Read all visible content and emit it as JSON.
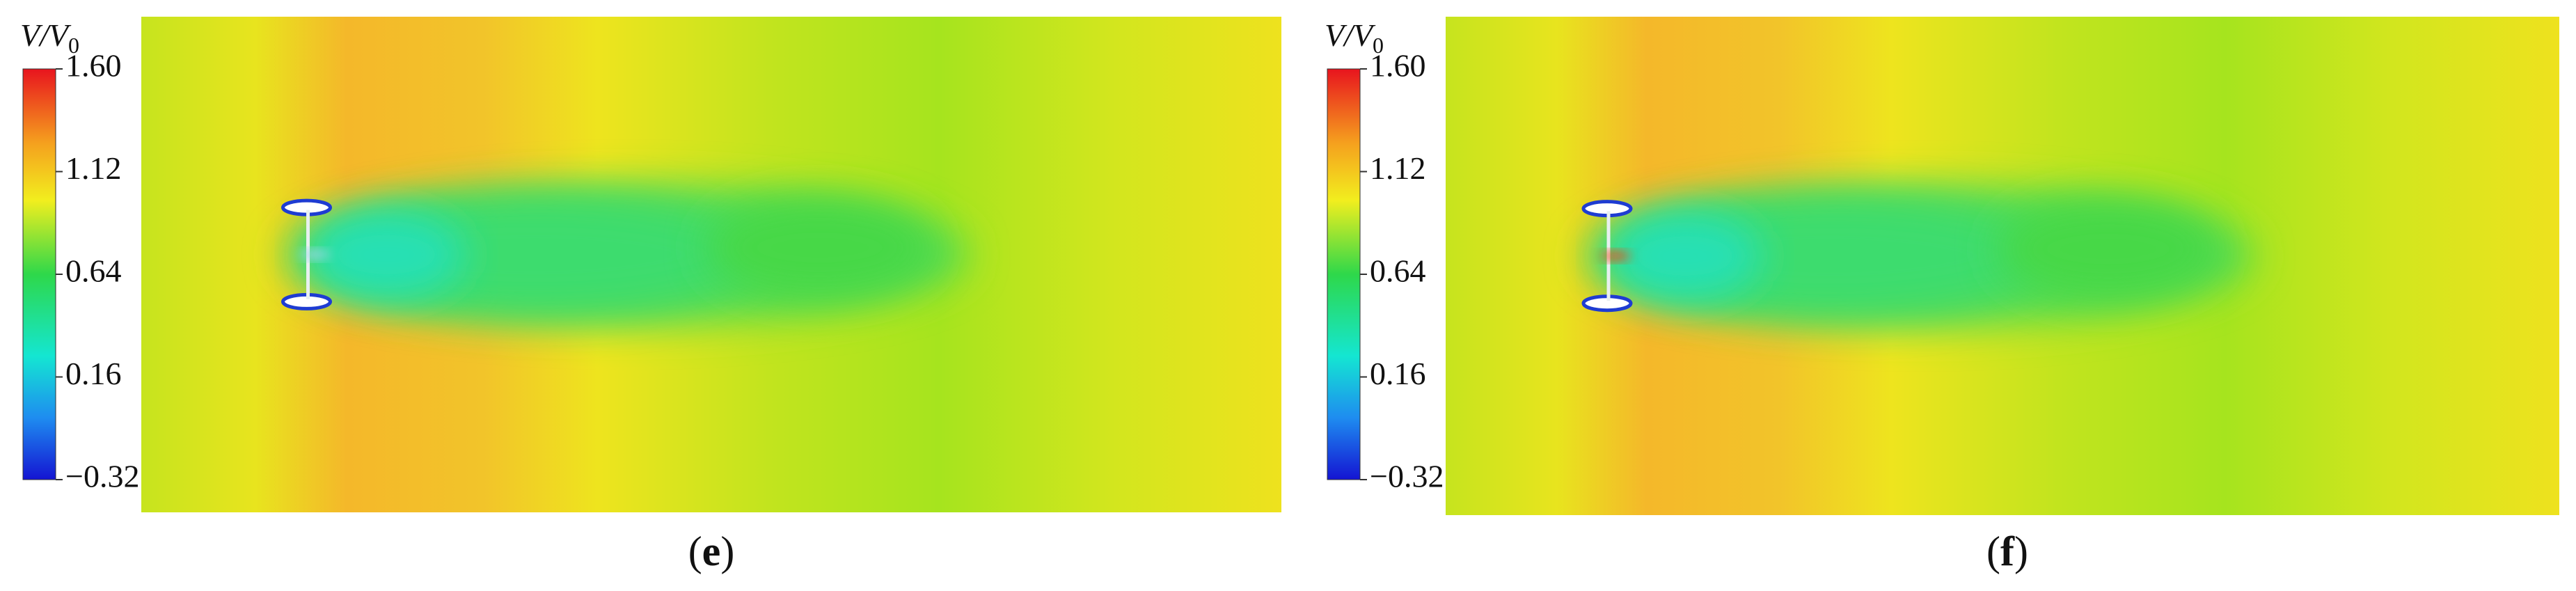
{
  "panels": [
    {
      "label": {
        "open": "(",
        "letter": "e",
        "close": ")"
      },
      "colorbar": {
        "title": "V/V",
        "title_sub": "0",
        "ticks": [
          {
            "value": 1.6,
            "label": "1.60"
          },
          {
            "value": 1.12,
            "label": "1.12"
          },
          {
            "value": 0.64,
            "label": "0.64"
          },
          {
            "value": 0.16,
            "label": "0.16"
          },
          {
            "value": -0.32,
            "label": "−0.32"
          }
        ]
      }
    },
    {
      "label": {
        "open": "(",
        "letter": "f",
        "close": ")"
      },
      "colorbar": {
        "title": "V/V",
        "title_sub": "0",
        "ticks": [
          {
            "value": 1.6,
            "label": "1.60"
          },
          {
            "value": 1.12,
            "label": "1.12"
          },
          {
            "value": 0.64,
            "label": "0.64"
          },
          {
            "value": 0.16,
            "label": "0.16"
          },
          {
            "value": -0.32,
            "label": "−0.32"
          }
        ]
      }
    }
  ]
}
